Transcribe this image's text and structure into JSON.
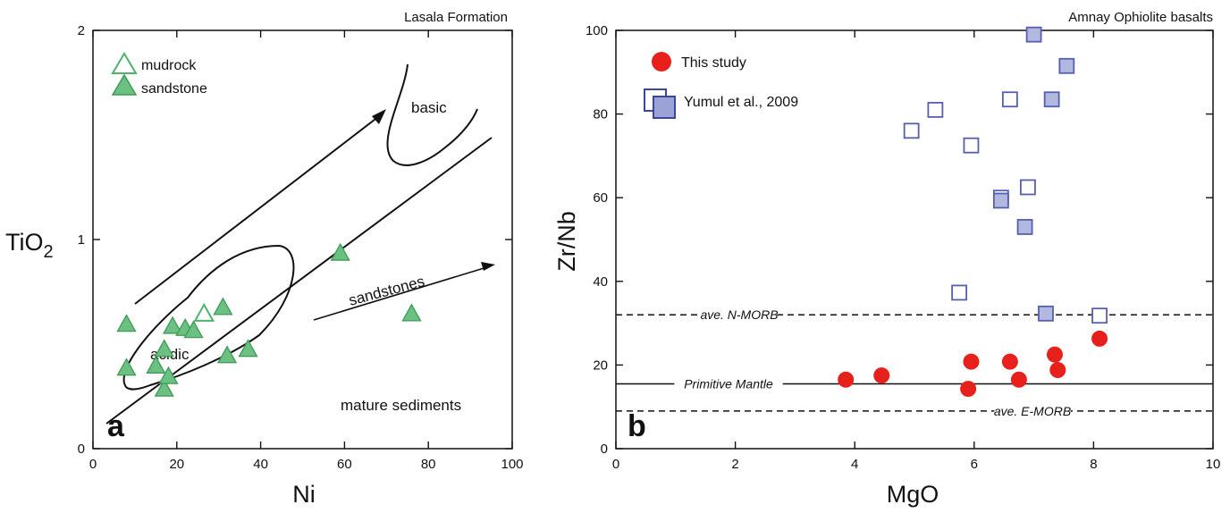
{
  "chart_data": [
    {
      "type": "scatter",
      "panel_letter": "a",
      "title": "Lasala Formation",
      "xlabel": "Ni",
      "ylabel_main": "TiO",
      "ylabel_sub": "2",
      "xlim": [
        0,
        100
      ],
      "ylim": [
        0,
        2
      ],
      "xticks": [
        "0",
        "20",
        "40",
        "60",
        "80",
        "100"
      ],
      "yticks": [
        "0",
        "1",
        "2"
      ],
      "legend": [
        "mudrock",
        "sandstone"
      ],
      "series": [
        {
          "name": "mudrock",
          "marker": "triangle-open",
          "color": "#4db36b",
          "points": [
            [
              26.5,
              0.65
            ]
          ]
        },
        {
          "name": "sandstone",
          "marker": "triangle-filled",
          "color": "#4db36b",
          "points": [
            [
              8,
              0.6
            ],
            [
              8,
              0.39
            ],
            [
              15,
              0.4
            ],
            [
              17,
              0.48
            ],
            [
              17,
              0.29
            ],
            [
              18,
              0.35
            ],
            [
              19,
              0.59
            ],
            [
              22,
              0.58
            ],
            [
              24,
              0.57
            ],
            [
              31,
              0.68
            ],
            [
              32,
              0.45
            ],
            [
              37,
              0.48
            ],
            [
              59,
              0.94
            ],
            [
              76,
              0.65
            ]
          ]
        }
      ],
      "annotations": [
        "basic",
        "acidic",
        "sandstones",
        "mature sediments"
      ]
    },
    {
      "type": "scatter",
      "panel_letter": "b",
      "title": "Amnay Ophiolite basalts",
      "xlabel": "MgO",
      "ylabel": "Zr/Nb",
      "xlim": [
        0,
        10
      ],
      "ylim": [
        0,
        100
      ],
      "xticks": [
        "0",
        "2",
        "4",
        "6",
        "8",
        "10"
      ],
      "yticks": [
        "0",
        "20",
        "40",
        "60",
        "80",
        "100"
      ],
      "legend": [
        "This study",
        "Yumul et al., 2009"
      ],
      "reference_lines": [
        {
          "label": "ave. N-MORB",
          "y": 32,
          "style": "dashed"
        },
        {
          "label": "Primitive Mantle",
          "y": 15.5,
          "style": "solid"
        },
        {
          "label": "ave. E-MORB",
          "y": 9,
          "style": "dashed"
        }
      ],
      "series": [
        {
          "name": "This study",
          "marker": "circle-filled",
          "color": "#e8201c",
          "points": [
            [
              3.85,
              16.5
            ],
            [
              4.45,
              17.5
            ],
            [
              5.95,
              20.8
            ],
            [
              5.9,
              14.3
            ],
            [
              6.6,
              20.8
            ],
            [
              6.75,
              16.5
            ],
            [
              7.35,
              22.5
            ],
            [
              7.4,
              18.8
            ],
            [
              8.1,
              26.3
            ]
          ]
        },
        {
          "name": "Yumul et al., 2009",
          "marker": "square-open",
          "color": "#5560b0",
          "points": [
            [
              4.95,
              76
            ],
            [
              5.35,
              81
            ],
            [
              5.95,
              72.5
            ],
            [
              6.6,
              83.5
            ],
            [
              6.9,
              62.5
            ],
            [
              5.75,
              37.3
            ],
            [
              8.1,
              31.8
            ],
            [
              6.45,
              60
            ]
          ]
        },
        {
          "name": "Yumul et al., 2009",
          "marker": "square-filled",
          "color": "#5560b0",
          "points": [
            [
              7.0,
              99
            ],
            [
              7.55,
              91.5
            ],
            [
              7.3,
              83.5
            ],
            [
              6.45,
              59.3
            ],
            [
              6.85,
              53
            ],
            [
              7.2,
              32.3
            ]
          ]
        }
      ]
    }
  ]
}
